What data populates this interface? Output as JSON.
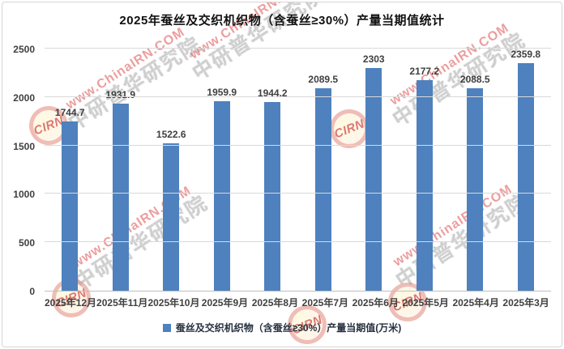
{
  "title": "2025年蚕丝及交织机织物（含蚕丝≥30%）产量当期值统计",
  "chart_data": {
    "type": "bar",
    "title": "2025年蚕丝及交织机织物（含蚕丝≥30%）产量当期值统计",
    "categories": [
      "2025年12月",
      "2025年11月",
      "2025年10月",
      "2025年9月",
      "2025年8月",
      "2025年7月",
      "2025年6月",
      "2025年5月",
      "2025年4月",
      "2025年3月"
    ],
    "values": [
      1744.7,
      1931.9,
      1522.6,
      1959.9,
      1944.2,
      2089.5,
      2303,
      2177.2,
      2088.5,
      2359.8
    ],
    "value_labels": [
      "1744.7",
      "1931.9",
      "1522.6",
      "1959.9",
      "1944.2",
      "2089.5",
      "2303",
      "2177.2",
      "2088.5",
      "2359.8"
    ],
    "xlabel": "",
    "ylabel": "",
    "ylim": [
      0,
      2500
    ],
    "yticks": [
      0,
      500,
      1000,
      1500,
      2000,
      2500
    ],
    "grid": true,
    "legend_position": "bottom",
    "legend": [
      {
        "label": "蚕丝及交织机织物（含蚕丝≥30%）产量当期值(万米)",
        "color": "#4E81BD"
      }
    ],
    "bar_color": "#4E81BD"
  },
  "watermark": {
    "url_text": "www.ChinaIRN.COM",
    "cn_text": "中研普华研究院",
    "logo_text": "CIRN",
    "accent_color": "#D95F5F"
  }
}
